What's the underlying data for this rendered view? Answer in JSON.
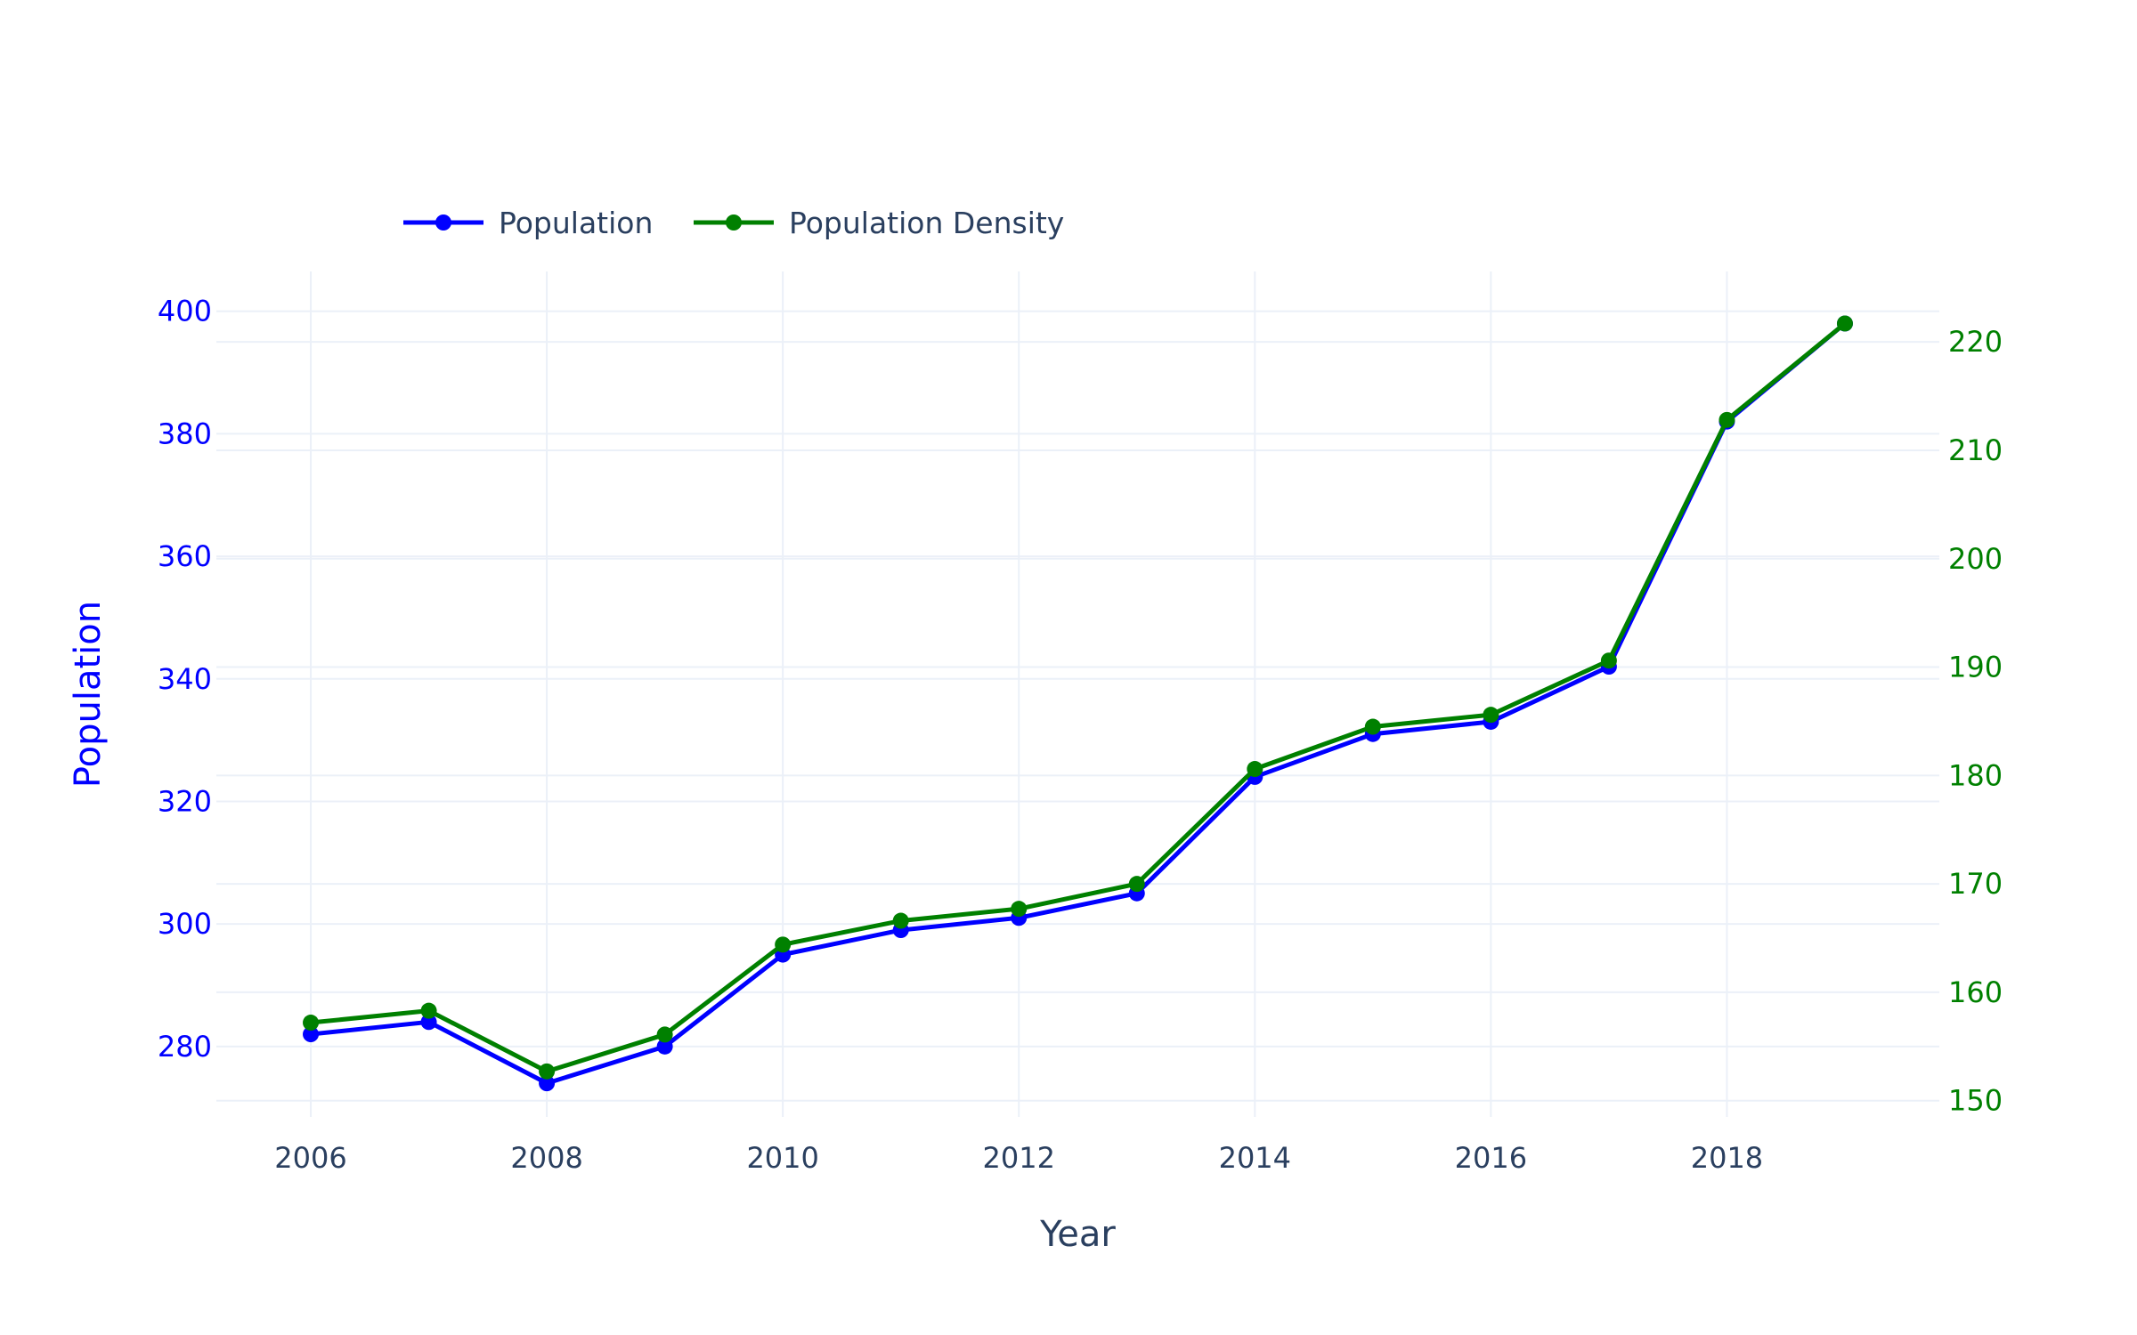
{
  "chart_data": {
    "type": "line",
    "x": [
      2006,
      2007,
      2008,
      2009,
      2010,
      2011,
      2012,
      2013,
      2014,
      2015,
      2016,
      2017,
      2018,
      2019
    ],
    "xlabel": "Year",
    "ylabel": "Population",
    "xlim": [
      2005.2,
      2019.8
    ],
    "ylim": [
      268.5,
      406.5
    ],
    "y2lim": [
      148.5,
      226.5
    ],
    "x_ticks": [
      "2006",
      "2008",
      "2010",
      "2012",
      "2014",
      "2016",
      "2018"
    ],
    "y_ticks": [
      "280",
      "300",
      "320",
      "340",
      "360",
      "380",
      "400"
    ],
    "y2_ticks": [
      "150",
      "160",
      "170",
      "180",
      "190",
      "200",
      "210",
      "220"
    ],
    "grid": true,
    "legend": {
      "position": "top-left",
      "orientation": "horizontal"
    },
    "series": [
      {
        "name": "Population",
        "axis": "left",
        "color": "#0000ff",
        "values": [
          282,
          284,
          274,
          280,
          295,
          299,
          301,
          305,
          324,
          331,
          333,
          342,
          382,
          398
        ]
      },
      {
        "name": "Population Density",
        "axis": "right",
        "color": "#008000",
        "values": [
          157.2,
          158.3,
          152.7,
          156.1,
          164.4,
          166.6,
          167.7,
          170,
          180.6,
          184.5,
          185.6,
          190.6,
          212.8,
          221.7
        ]
      }
    ]
  }
}
